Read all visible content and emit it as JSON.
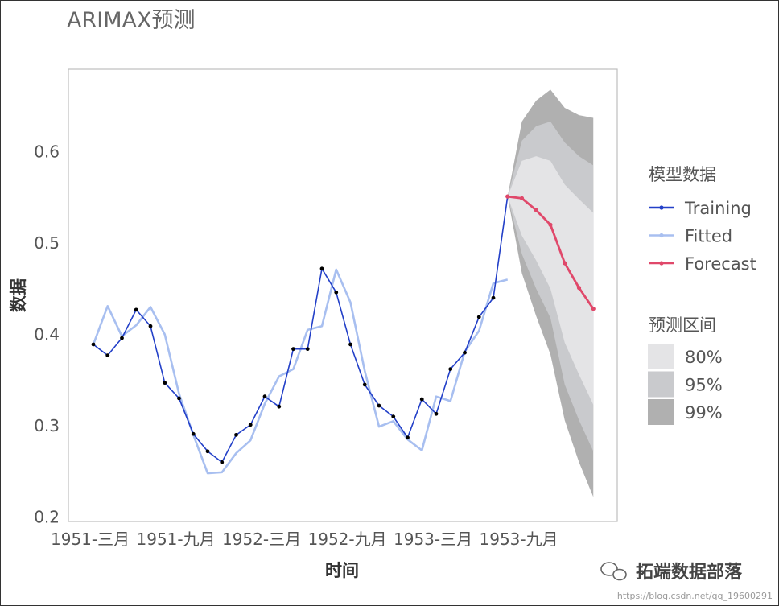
{
  "chart_data": {
    "type": "line",
    "title": "ARIMAX预测",
    "xlabel": "时间",
    "ylabel": "数据",
    "ylim": [
      0.2,
      0.69
    ],
    "x_ticks": [
      "1951-三月",
      "1951-九月",
      "1952-三月",
      "1952-九月",
      "1953-三月",
      "1953-九月"
    ],
    "y_ticks": [
      "0.2",
      "0.3",
      "0.4",
      "0.5",
      "0.6"
    ],
    "grid": false,
    "legend_placement": "right",
    "legend_groups": [
      {
        "title": "模型数据",
        "items": [
          "Training",
          "Fitted",
          "Forecast"
        ]
      },
      {
        "title": "预测区间",
        "items": [
          "80%",
          "95%",
          "99%"
        ]
      }
    ],
    "colors": {
      "training": "#2340c8",
      "fitted": "#a8bff0",
      "forecast": "#e0486a",
      "band80": "#e4e4e6",
      "band95": "#c9cacd",
      "band99": "#b0b0b0"
    },
    "series": [
      {
        "name": "Training",
        "x_start": 0,
        "values": [
          0.389,
          0.377,
          0.396,
          0.427,
          0.409,
          0.347,
          0.33,
          0.291,
          0.272,
          0.26,
          0.29,
          0.301,
          0.332,
          0.321,
          0.384,
          0.384,
          0.472,
          0.446,
          0.389,
          0.345,
          0.322,
          0.31,
          0.287,
          0.329,
          0.313,
          0.362,
          0.38,
          0.419,
          0.44,
          0.551
        ]
      },
      {
        "name": "Fitted",
        "x_start": 0,
        "values": [
          0.389,
          0.431,
          0.398,
          0.41,
          0.43,
          0.4,
          0.335,
          0.29,
          0.248,
          0.249,
          0.27,
          0.284,
          0.324,
          0.354,
          0.362,
          0.405,
          0.409,
          0.471,
          0.435,
          0.36,
          0.299,
          0.305,
          0.285,
          0.273,
          0.332,
          0.327,
          0.381,
          0.404,
          0.456,
          0.46
        ]
      },
      {
        "name": "Forecast",
        "x_start": 29,
        "values": [
          0.551,
          0.549,
          0.536,
          0.52,
          0.478,
          0.451,
          0.428
        ]
      }
    ],
    "intervals": {
      "x_start": 29,
      "80%": {
        "lower": [
          0.551,
          0.508,
          0.481,
          0.45,
          0.391,
          0.356,
          0.323
        ],
        "upper": [
          0.551,
          0.59,
          0.595,
          0.59,
          0.564,
          0.548,
          0.533
        ]
      },
      "95%": {
        "lower": [
          0.551,
          0.488,
          0.45,
          0.418,
          0.345,
          0.306,
          0.272
        ],
        "upper": [
          0.551,
          0.612,
          0.628,
          0.633,
          0.61,
          0.595,
          0.585
        ]
      },
      "99%": {
        "lower": [
          0.551,
          0.467,
          0.42,
          0.378,
          0.306,
          0.26,
          0.222
        ],
        "upper": [
          0.551,
          0.633,
          0.656,
          0.668,
          0.648,
          0.64,
          0.637
        ]
      }
    }
  },
  "watermark": {
    "text": "拓端数据部落",
    "url": "https://blog.csdn.net/qq_19600291"
  }
}
